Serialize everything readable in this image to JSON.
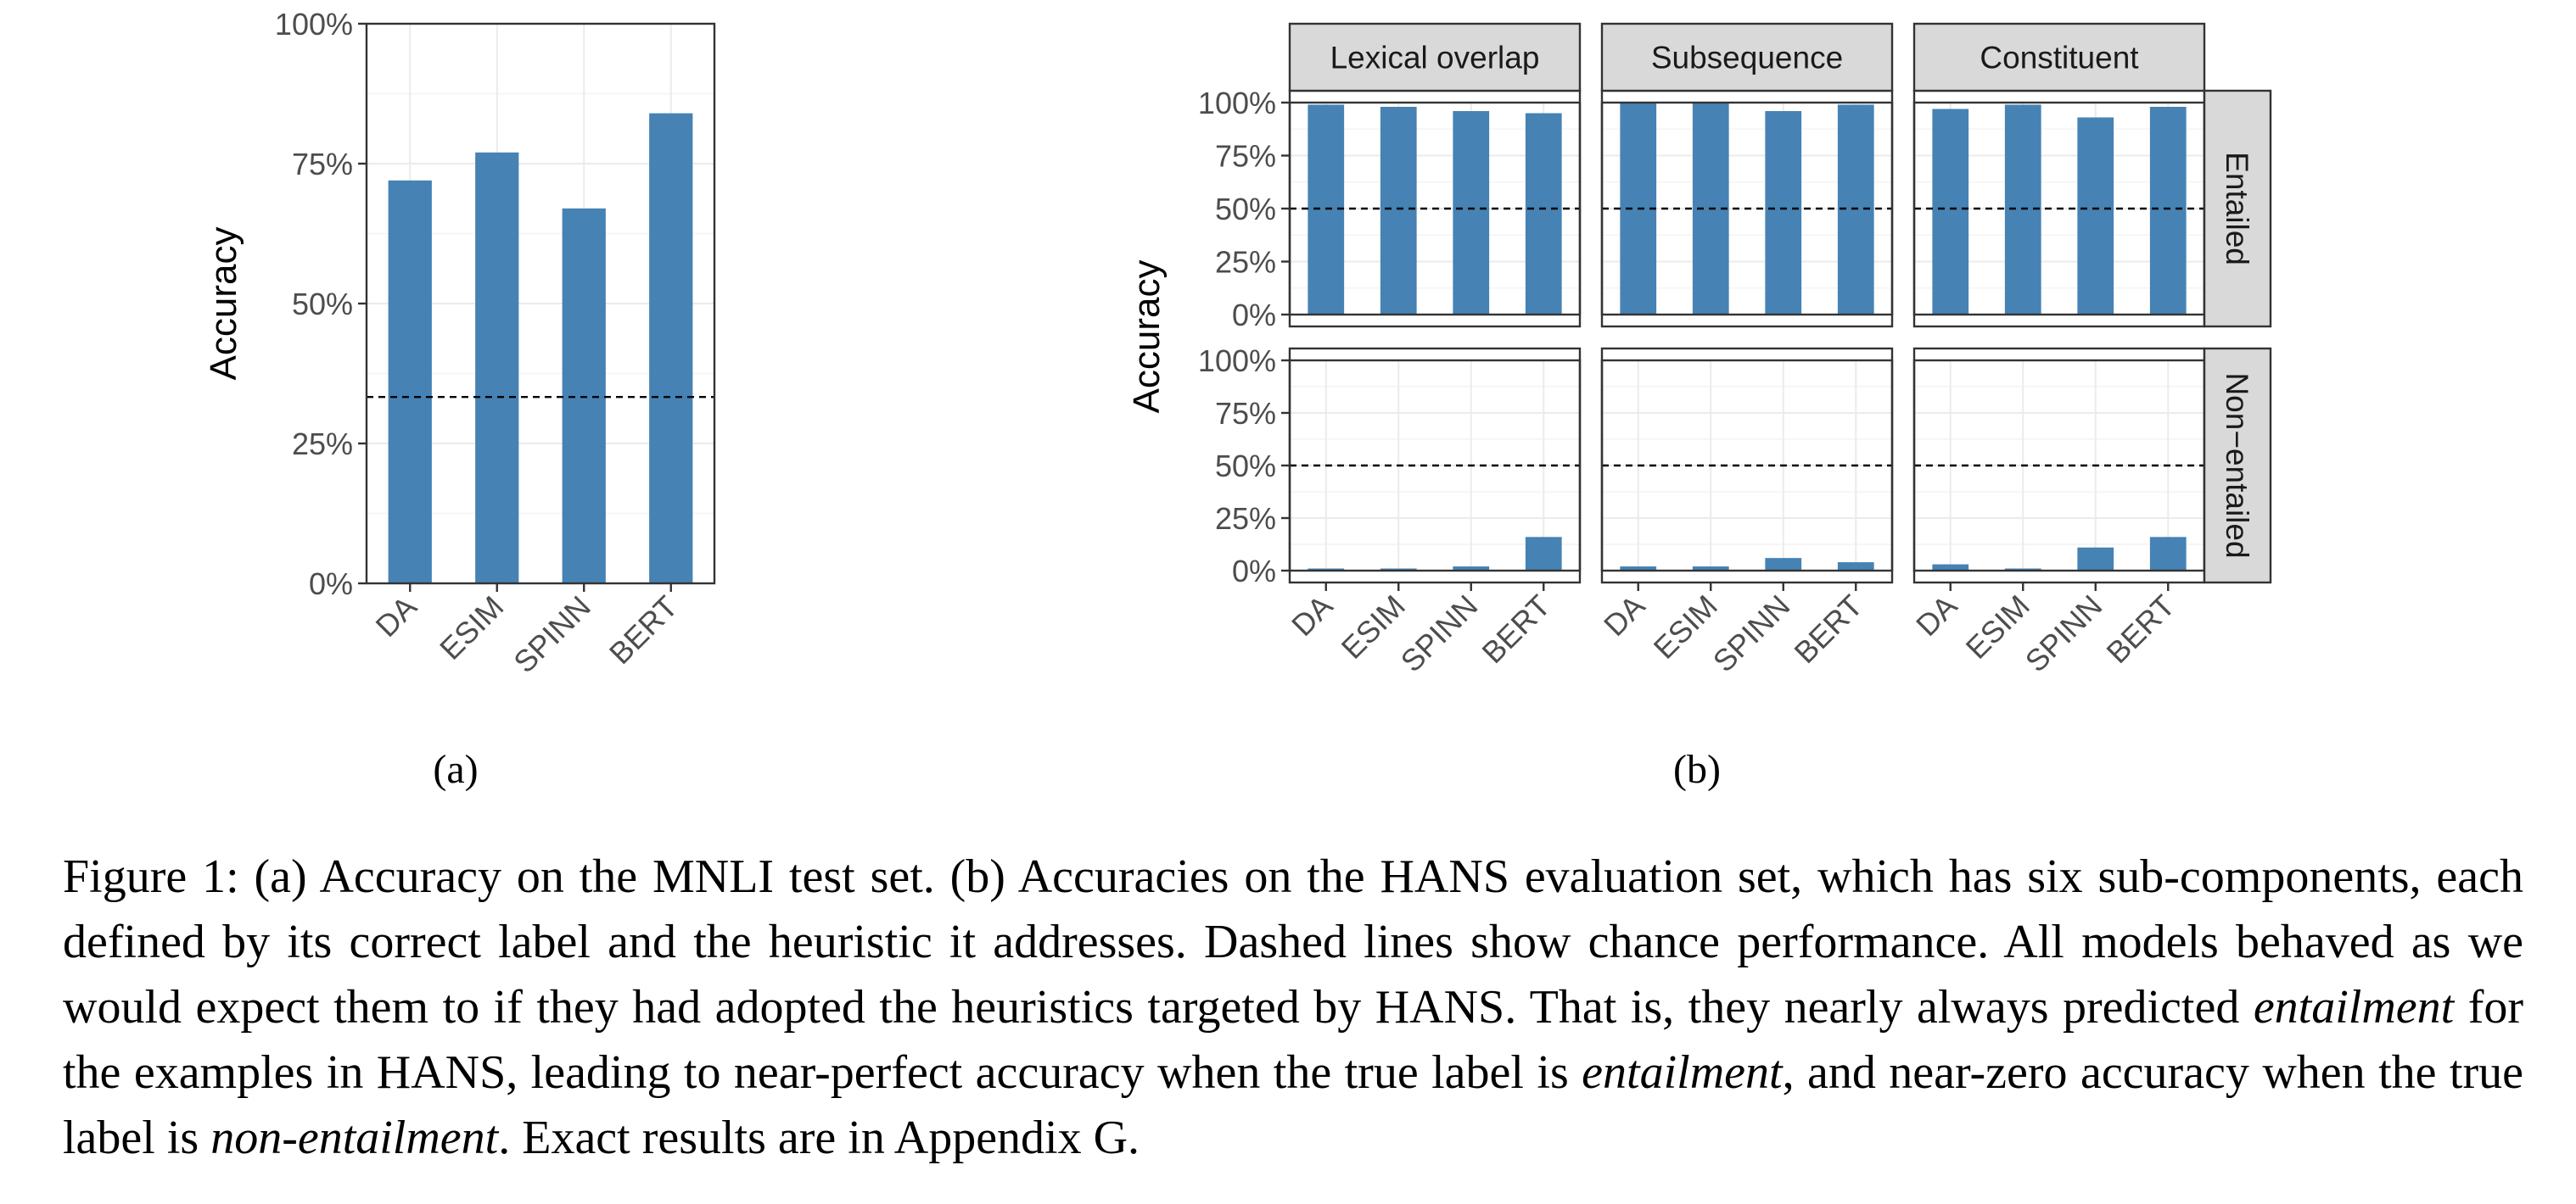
{
  "chart_data": [
    {
      "type": "bar",
      "label": "(a)",
      "ylabel": "Accuracy",
      "ylim": [
        0,
        100
      ],
      "yticks": [
        "0%",
        "25%",
        "50%",
        "75%",
        "100%"
      ],
      "categories": [
        "DA",
        "ESIM",
        "SPINN",
        "BERT"
      ],
      "values": [
        72,
        77,
        67,
        84
      ],
      "reference_line": 33.3,
      "bar_color": "#4682B4"
    },
    {
      "type": "bar",
      "label": "(b)",
      "ylabel": "Accuracy",
      "ylim": [
        0,
        100
      ],
      "yticks": [
        "0%",
        "25%",
        "50%",
        "75%",
        "100%"
      ],
      "categories": [
        "DA",
        "ESIM",
        "SPINN",
        "BERT"
      ],
      "columns": [
        "Lexical overlap",
        "Subsequence",
        "Constituent"
      ],
      "rows": [
        "Entailed",
        "Non−entailed"
      ],
      "reference_line": 50,
      "bar_color": "#4682B4",
      "panels": [
        {
          "row": "Entailed",
          "column": "Lexical overlap",
          "values": [
            99,
            98,
            96,
            95
          ]
        },
        {
          "row": "Entailed",
          "column": "Subsequence",
          "values": [
            100,
            100,
            96,
            99
          ]
        },
        {
          "row": "Entailed",
          "column": "Constituent",
          "values": [
            97,
            99,
            93,
            98
          ]
        },
        {
          "row": "Non−entailed",
          "column": "Lexical overlap",
          "values": [
            1,
            1,
            2,
            16
          ]
        },
        {
          "row": "Non−entailed",
          "column": "Subsequence",
          "values": [
            2,
            2,
            6,
            4
          ]
        },
        {
          "row": "Non−entailed",
          "column": "Constituent",
          "values": [
            3,
            1,
            11,
            16
          ]
        }
      ]
    }
  ],
  "caption": {
    "t1": "Figure 1: (a) Accuracy on the MNLI test set.  (b) Accuracies on the HANS evaluation set, which has six sub-components, each defined by its correct label and the heuristic it addresses. Dashed lines show chance performance. All models behaved as we would expect them to if they had adopted the heuristics targeted by HANS. That is, they nearly always predicted ",
    "e1": "entailment",
    "t2": " for the examples in HANS, leading to near-perfect accuracy when the true label is ",
    "e2": "entailment",
    "t3": ", and near-zero accuracy when the true label is ",
    "e3": "non-entailment",
    "t4": ". Exact results are in Appendix G."
  }
}
